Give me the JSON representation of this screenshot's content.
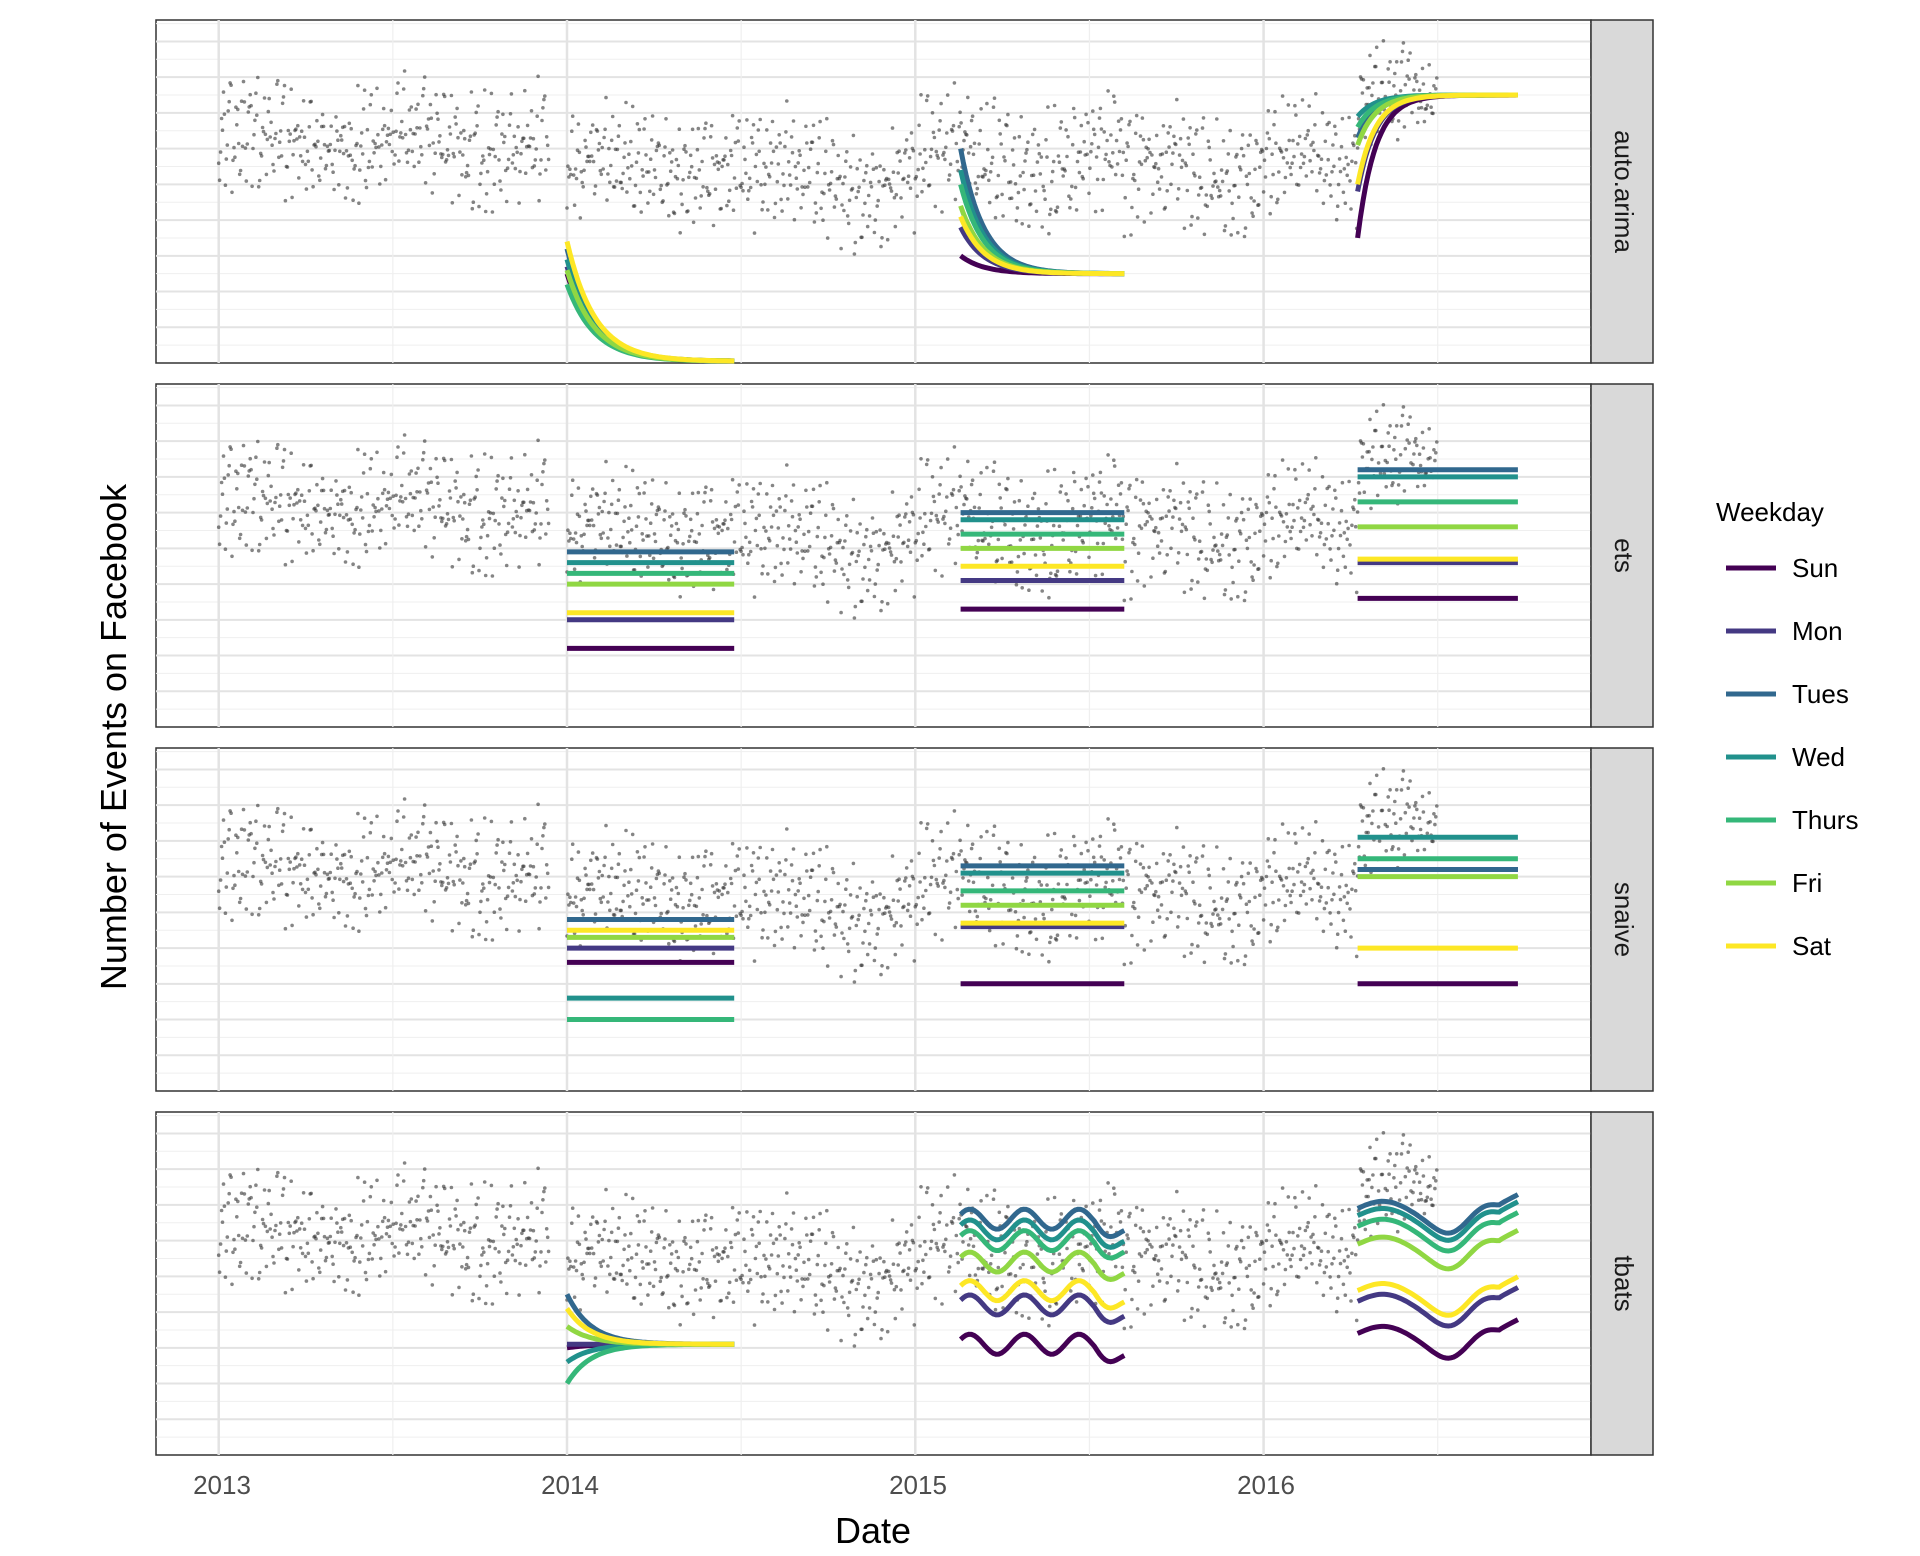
{
  "chart_data": {
    "type": "line",
    "title": "",
    "xlabel": "Date",
    "ylabel": "Number of Events on Facebook",
    "x_ticks": [
      "2013",
      "2014",
      "2015",
      "2016"
    ],
    "xlim": [
      2012.82,
      2016.94
    ],
    "ylim": [
      0,
      9.6
    ],
    "grid": true,
    "y_tick_labels_shown": false,
    "panels": [
      "auto.arima",
      "ets",
      "snaive",
      "tbats"
    ],
    "legend": {
      "title": "Weekday",
      "position": "right",
      "entries": [
        "Sun",
        "Mon",
        "Tues",
        "Wed",
        "Thurs",
        "Fri",
        "Sat"
      ]
    },
    "colors": {
      "Sun": "#440154",
      "Mon": "#443983",
      "Tues": "#31688e",
      "Wed": "#21918c",
      "Thurs": "#35b779",
      "Fri": "#90d743",
      "Sat": "#fde725",
      "points": "#333333"
    },
    "observed_points": {
      "description": "daily observed event counts (approximate shape)",
      "segments": [
        {
          "start": 2013.0,
          "end": 2013.95,
          "center": 6.2,
          "spread": 1.9
        },
        {
          "start": 2014.0,
          "end": 2014.5,
          "center": 5.5,
          "spread": 1.8
        },
        {
          "start": 2014.5,
          "end": 2015.0,
          "center": 5.2,
          "spread": 1.9
        },
        {
          "start": 2015.0,
          "end": 2015.6,
          "center": 5.7,
          "spread": 1.9
        },
        {
          "start": 2015.6,
          "end": 2016.0,
          "center": 5.3,
          "spread": 1.9
        },
        {
          "start": 2016.0,
          "end": 2016.27,
          "center": 5.6,
          "spread": 1.8
        },
        {
          "start": 2016.27,
          "end": 2016.5,
          "center": 7.3,
          "spread": 1.5
        }
      ]
    },
    "forecast_windows": [
      [
        2014.0,
        2014.48
      ],
      [
        2015.13,
        2015.6
      ],
      [
        2016.27,
        2016.73
      ]
    ],
    "series": {
      "auto.arima": [
        {
          "window": 0,
          "kind": "exp",
          "end": 0.05,
          "rate": 6.0,
          "start": {
            "Sun": 2.5,
            "Mon": 2.7,
            "Tues": 3.2,
            "Wed": 2.9,
            "Thurs": 2.2,
            "Fri": 2.6,
            "Sat": 3.4
          }
        },
        {
          "window": 1,
          "kind": "exp",
          "end": 2.5,
          "rate": 7.0,
          "start": {
            "Sun": 3.0,
            "Mon": 3.8,
            "Tues": 6.0,
            "Wed": 5.4,
            "Thurs": 5.0,
            "Fri": 4.4,
            "Sat": 4.1
          }
        },
        {
          "window": 2,
          "kind": "exp",
          "end": 7.5,
          "rate": 9.0,
          "start": {
            "Sun": 3.5,
            "Mon": 4.8,
            "Tues": 6.3,
            "Wed": 6.9,
            "Thurs": 6.6,
            "Fri": 6.1,
            "Sat": 5.0
          }
        }
      ],
      "ets": [
        {
          "window": 0,
          "kind": "flat",
          "values": {
            "Sun": 2.2,
            "Mon": 3.0,
            "Tues": 4.9,
            "Wed": 4.6,
            "Thurs": 4.3,
            "Fri": 4.0,
            "Sat": 3.2
          }
        },
        {
          "window": 1,
          "kind": "flat",
          "values": {
            "Sun": 3.3,
            "Mon": 4.1,
            "Tues": 6.0,
            "Wed": 5.8,
            "Thurs": 5.4,
            "Fri": 5.0,
            "Sat": 4.5
          }
        },
        {
          "window": 2,
          "kind": "flat",
          "values": {
            "Sun": 3.6,
            "Mon": 4.6,
            "Tues": 7.2,
            "Wed": 7.0,
            "Thurs": 6.3,
            "Fri": 5.6,
            "Sat": 4.7
          }
        }
      ],
      "snaive": [
        {
          "window": 0,
          "kind": "flat",
          "values": {
            "Sun": 3.6,
            "Mon": 4.0,
            "Tues": 4.8,
            "Wed": 2.6,
            "Thurs": 2.0,
            "Fri": 4.3,
            "Sat": 4.5
          }
        },
        {
          "window": 1,
          "kind": "flat",
          "values": {
            "Sun": 3.0,
            "Mon": 4.6,
            "Tues": 6.3,
            "Wed": 6.1,
            "Thurs": 5.6,
            "Fri": 5.2,
            "Sat": 4.7
          }
        },
        {
          "window": 2,
          "kind": "flat",
          "values": {
            "Sun": 3.0,
            "Mon": 6.2,
            "Tues": 6.2,
            "Wed": 7.1,
            "Thurs": 6.5,
            "Fri": 6.0,
            "Sat": 4.0
          }
        }
      ],
      "tbats": [
        {
          "window": 0,
          "kind": "converge",
          "end": 3.1,
          "rate": 7.0,
          "start": {
            "Sun": 3.0,
            "Mon": 3.1,
            "Tues": 4.5,
            "Wed": 2.6,
            "Thurs": 2.0,
            "Fri": 3.6,
            "Sat": 4.1
          }
        },
        {
          "window": 1,
          "kind": "wave",
          "base": {
            "Sun": 3.1,
            "Mon": 4.2,
            "Tues": 6.6,
            "Wed": 6.3,
            "Thurs": 6.0,
            "Fri": 5.4,
            "Sat": 4.6
          },
          "amp": 0.28,
          "drop": 0.45
        },
        {
          "window": 2,
          "kind": "wave2",
          "base": {
            "Sun": 3.4,
            "Mon": 4.3,
            "Tues": 6.9,
            "Wed": 6.7,
            "Thurs": 6.4,
            "Fri": 5.9,
            "Sat": 4.6
          },
          "amp": 0.6
        }
      ]
    }
  }
}
